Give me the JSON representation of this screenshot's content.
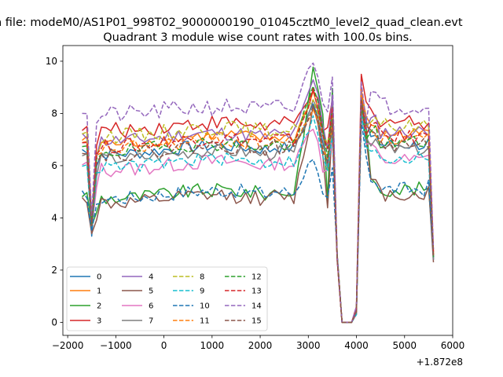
{
  "figure": {
    "suptitle": "n file: modeM0/AS1P01_998T02_9000000190_01045cztM0_level2_quad_clean.evt",
    "title": "Quadrant 3 module wise count rates with 100.0s bins.",
    "x_offset_text": "+1.872e8"
  },
  "chart_data": {
    "type": "line",
    "title": "Quadrant 3 module wise count rates with 100.0s bins.",
    "xlabel": "",
    "ylabel": "",
    "x_offset": "+1.872e8",
    "xlim": [
      -2100,
      6000
    ],
    "ylim": [
      -0.5,
      10.6
    ],
    "xticks": [
      -2000,
      -1000,
      0,
      1000,
      2000,
      3000,
      4000,
      5000,
      6000
    ],
    "xtick_labels": [
      "−2000",
      "−1000",
      "0",
      "1000",
      "2000",
      "3000",
      "4000",
      "5000",
      "6000"
    ],
    "yticks": [
      0,
      2,
      4,
      6,
      8,
      10
    ],
    "ytick_labels": [
      "0",
      "2",
      "4",
      "6",
      "8",
      "10"
    ],
    "grid": false,
    "legend": {
      "placement": "lower-left",
      "columns": 4
    },
    "x_segments": [
      {
        "start": -1700,
        "end": 3500,
        "step": 100
      },
      {
        "start": 3600,
        "end": 4000,
        "step": 100
      },
      {
        "start": 4100,
        "end": 5600,
        "step": 100
      }
    ],
    "gap_level": 0,
    "series": [
      {
        "name": "0",
        "color": "#1f77b4",
        "style": "solid",
        "base": 6.6,
        "drop": 3.3,
        "peak": 8.4,
        "gap_end": 0.4,
        "post": 8.7,
        "end": 2.4,
        "noise": 0.25
      },
      {
        "name": "1",
        "color": "#ff7f0e",
        "style": "solid",
        "base": 7.0,
        "drop": 3.8,
        "peak": 8.8,
        "gap_end": 0.3,
        "post": 8.9,
        "end": 2.5,
        "noise": 0.25
      },
      {
        "name": "2",
        "color": "#2ca02c",
        "style": "solid",
        "base": 4.9,
        "drop": 3.7,
        "peak": 9.6,
        "gap_end": 0.5,
        "post": 8.6,
        "end": 2.6,
        "noise": 0.28
      },
      {
        "name": "3",
        "color": "#d62728",
        "style": "solid",
        "base": 7.5,
        "drop": 3.9,
        "peak": 9.0,
        "gap_end": 0.6,
        "post": 9.5,
        "end": 2.7,
        "noise": 0.3
      },
      {
        "name": "4",
        "color": "#9467bd",
        "style": "solid",
        "base": 7.1,
        "drop": 3.8,
        "peak": 9.3,
        "gap_end": 0.5,
        "post": 8.5,
        "end": 2.4,
        "noise": 0.28
      },
      {
        "name": "5",
        "color": "#8c564b",
        "style": "solid",
        "base": 4.7,
        "drop": 3.4,
        "peak": 8.2,
        "gap_end": 0.4,
        "post": 8.2,
        "end": 2.3,
        "noise": 0.28
      },
      {
        "name": "6",
        "color": "#e377c2",
        "style": "solid",
        "base": 6.0,
        "drop": 3.6,
        "peak": 7.6,
        "gap_end": 0.3,
        "post": 8.0,
        "end": 2.5,
        "noise": 0.3
      },
      {
        "name": "7",
        "color": "#7f7f7f",
        "style": "solid",
        "base": 6.4,
        "drop": 3.6,
        "peak": 8.6,
        "gap_end": 0.4,
        "post": 8.3,
        "end": 2.4,
        "noise": 0.25
      },
      {
        "name": "8",
        "color": "#bcbd22",
        "style": "dashed",
        "base": 7.3,
        "drop": 3.9,
        "peak": 8.5,
        "gap_end": 0.4,
        "post": 8.8,
        "end": 2.6,
        "noise": 0.3
      },
      {
        "name": "9",
        "color": "#17becf",
        "style": "dashed",
        "base": 6.1,
        "drop": 3.6,
        "peak": 7.8,
        "gap_end": 0.3,
        "post": 8.0,
        "end": 2.5,
        "noise": 0.25
      },
      {
        "name": "10",
        "color": "#1f77b4",
        "style": "dashed",
        "base": 4.9,
        "drop": 3.5,
        "peak": 6.4,
        "gap_end": 0.4,
        "post": 7.7,
        "end": 2.5,
        "noise": 0.28
      },
      {
        "name": "11",
        "color": "#ff7f0e",
        "style": "dashed",
        "base": 6.8,
        "drop": 3.7,
        "peak": 8.2,
        "gap_end": 0.4,
        "post": 8.9,
        "end": 2.6,
        "noise": 0.28
      },
      {
        "name": "12",
        "color": "#2ca02c",
        "style": "dashed",
        "base": 6.7,
        "drop": 3.7,
        "peak": 9.0,
        "gap_end": 0.5,
        "post": 8.4,
        "end": 2.5,
        "noise": 0.28
      },
      {
        "name": "13",
        "color": "#d62728",
        "style": "dashed",
        "base": 6.9,
        "drop": 3.8,
        "peak": 8.8,
        "gap_end": 0.5,
        "post": 8.6,
        "end": 2.6,
        "noise": 0.28
      },
      {
        "name": "14",
        "color": "#9467bd",
        "style": "dashed",
        "base": 8.1,
        "drop": 4.1,
        "peak": 10.1,
        "gap_end": 0.6,
        "post": 9.2,
        "end": 2.8,
        "noise": 0.35
      },
      {
        "name": "15",
        "color": "#8c564b",
        "style": "dashed",
        "base": 6.6,
        "drop": 3.7,
        "peak": 8.3,
        "gap_end": 0.4,
        "post": 8.5,
        "end": 2.5,
        "noise": 0.28
      }
    ]
  }
}
